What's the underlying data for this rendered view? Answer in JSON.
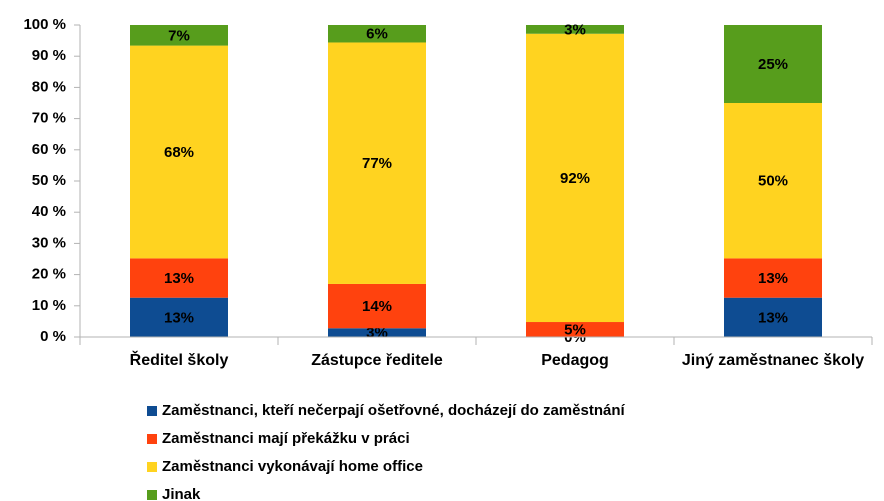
{
  "chart_data": {
    "type": "stacked_bar",
    "categories": [
      "Ředitel školy",
      "Zástupce ředitele",
      "Pedagog",
      "Jiný zaměstnanec školy"
    ],
    "series": [
      {
        "name": "Zaměstnanci, kteří nečerpají ošetřovné, docházejí do zaměstnání",
        "color": "#0e4c92",
        "values": [
          12.6,
          2.8,
          0,
          12.6
        ],
        "value_labels": [
          "13%",
          "3%",
          "0%",
          "13%"
        ]
      },
      {
        "name": "Zaměstnanci mají překážku v práci",
        "color": "#ff420e",
        "values": [
          12.6,
          14.2,
          4.8,
          12.6
        ],
        "value_labels": [
          "13%",
          "14%",
          "5%",
          "13%"
        ]
      },
      {
        "name": "Zaměstnanci vykonávají home office",
        "color": "#ffd320",
        "values": [
          68.2,
          77.4,
          92.4,
          49.8
        ],
        "value_labels": [
          "68%",
          "77%",
          "92%",
          "50%"
        ]
      },
      {
        "name": "Jinak",
        "color": "#579d1c",
        "values": [
          6.6,
          5.6,
          2.8,
          25
        ],
        "value_labels": [
          "7%",
          "6%",
          "3%",
          "25%"
        ]
      }
    ],
    "ylim": [
      0,
      100
    ],
    "yticks": [
      {
        "value": 0,
        "label": "0 %"
      },
      {
        "value": 10,
        "label": "10 %"
      },
      {
        "value": 20,
        "label": "20 %"
      },
      {
        "value": 30,
        "label": "30 %"
      },
      {
        "value": 40,
        "label": "40 %"
      },
      {
        "value": 50,
        "label": "50 %"
      },
      {
        "value": 60,
        "label": "60 %"
      },
      {
        "value": 70,
        "label": "70 %"
      },
      {
        "value": 80,
        "label": "80 %"
      },
      {
        "value": 90,
        "label": "90 %"
      },
      {
        "value": 100,
        "label": "100 %"
      }
    ],
    "legend": "bottom"
  }
}
